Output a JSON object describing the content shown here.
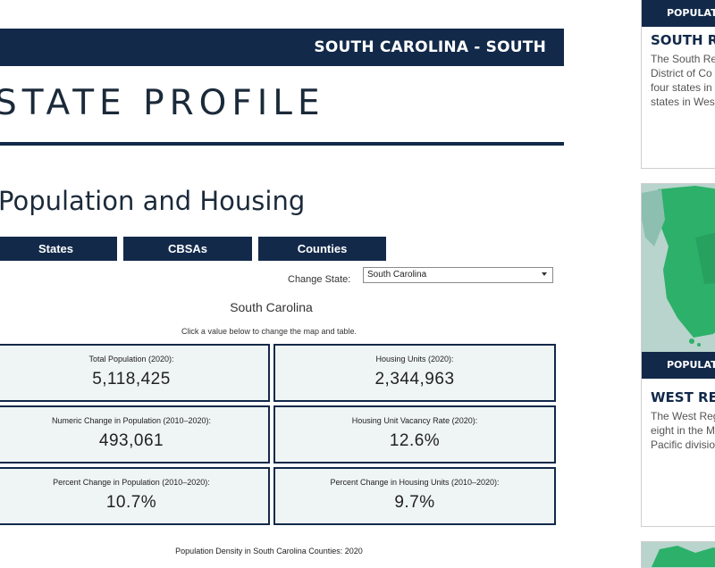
{
  "banner": {
    "label": "SOUTH CAROLINA - SOUTH"
  },
  "page_title": "STATE PROFILE",
  "section_title": "Population and Housing",
  "tabs": [
    {
      "label": "States"
    },
    {
      "label": "CBSAs"
    },
    {
      "label": "Counties"
    }
  ],
  "state_select": {
    "label": "Change State:",
    "value": "South Carolina"
  },
  "state_name": "South Carolina",
  "hint": "Click a value below to change the map and table.",
  "stats": [
    {
      "label": "Total Population (2020):",
      "value": "5,118,425"
    },
    {
      "label": "Housing Units (2020):",
      "value": "2,344,963"
    },
    {
      "label": "Numeric Change in Population (2010–2020):",
      "value": "493,061"
    },
    {
      "label": "Housing Unit Vacancy Rate (2020):",
      "value": "12.6%"
    },
    {
      "label": "Percent Change in Population (2010–2020):",
      "value": "10.7%"
    },
    {
      "label": "Percent Change in Housing Units (2010–2020):",
      "value": "9.7%"
    }
  ],
  "density_caption": "Population Density in South Carolina Counties: 2020",
  "right_cards": {
    "south": {
      "tag": "POPULATI",
      "heading": "SOUTH RE",
      "lines": [
        "The South Re",
        "District of Co",
        "four states in",
        "states in Wes"
      ]
    },
    "west": {
      "tag": "POPULATI",
      "heading": "WEST REG",
      "lines": [
        "The West Reg",
        "eight in the M",
        "Pacific divisio"
      ]
    }
  },
  "colors": {
    "navy": "#12294a",
    "stat_bg": "#eff4f4",
    "map_green": "#2db06a"
  }
}
